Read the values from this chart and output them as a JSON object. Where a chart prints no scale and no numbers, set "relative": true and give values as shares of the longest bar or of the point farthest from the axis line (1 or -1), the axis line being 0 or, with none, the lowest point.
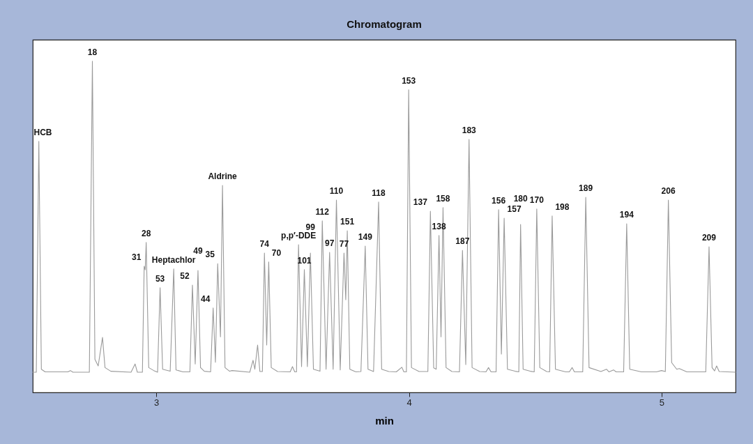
{
  "chart_data": {
    "type": "line",
    "relative": true,
    "title": "Chromatogram",
    "xlabel": "min",
    "xlim": [
      2.511,
      5.293
    ],
    "xticks": [
      3,
      4,
      5
    ],
    "grid": false,
    "marker": "none",
    "line_style": "solid",
    "series": [
      {
        "color": "#9a9a9a",
        "x": [
          2.511,
          2.525,
          2.535,
          2.545,
          2.56,
          2.65,
          2.66,
          2.67,
          2.735,
          2.747,
          2.757,
          2.77,
          2.787,
          2.797,
          2.82,
          2.9,
          2.916,
          2.925,
          2.945,
          2.952,
          2.956,
          2.96,
          2.97,
          2.99,
          3.005,
          3.015,
          3.025,
          3.055,
          3.069,
          3.078,
          3.105,
          3.133,
          3.143,
          3.154,
          3.165,
          3.175,
          3.19,
          3.215,
          3.225,
          3.234,
          3.243,
          3.254,
          3.262,
          3.272,
          3.29,
          3.3,
          3.37,
          3.383,
          3.39,
          3.401,
          3.41,
          3.42,
          3.428,
          3.437,
          3.445,
          3.455,
          3.48,
          3.53,
          3.539,
          3.548,
          3.555,
          3.563,
          3.575,
          3.586,
          3.598,
          3.61,
          3.622,
          3.648,
          3.657,
          3.672,
          3.686,
          3.7,
          3.713,
          3.728,
          3.743,
          3.75,
          3.756,
          3.766,
          3.79,
          3.81,
          3.827,
          3.838,
          3.86,
          3.88,
          3.892,
          3.92,
          3.95,
          3.972,
          3.98,
          3.99,
          3.999,
          4.01,
          4.04,
          4.075,
          4.085,
          4.098,
          4.108,
          4.119,
          4.127,
          4.135,
          4.147,
          4.17,
          4.2,
          4.212,
          4.225,
          4.238,
          4.25,
          4.28,
          4.305,
          4.315,
          4.325,
          4.345,
          4.355,
          4.366,
          4.377,
          4.39,
          4.42,
          4.435,
          4.442,
          4.452,
          4.48,
          4.496,
          4.506,
          4.518,
          4.545,
          4.557,
          4.567,
          4.58,
          4.62,
          4.635,
          4.646,
          4.655,
          4.688,
          4.7,
          4.713,
          4.76,
          4.782,
          4.792,
          4.81,
          4.82,
          4.85,
          4.862,
          4.874,
          4.92,
          4.98,
          5.0,
          5.015,
          5.027,
          5.04,
          5.06,
          5.07,
          5.1,
          5.175,
          5.188,
          5.2,
          5.21,
          5.218,
          5.228,
          5.293
        ],
        "values": [
          0.061,
          0.061,
          0.758,
          0.07,
          0.062,
          0.062,
          0.066,
          0.061,
          0.061,
          1.0,
          0.1,
          0.08,
          0.166,
          0.075,
          0.064,
          0.061,
          0.086,
          0.061,
          0.061,
          0.381,
          0.37,
          0.453,
          0.075,
          0.066,
          0.061,
          0.316,
          0.07,
          0.064,
          0.373,
          0.068,
          0.062,
          0.062,
          0.324,
          0.086,
          0.368,
          0.075,
          0.064,
          0.062,
          0.255,
          0.091,
          0.389,
          0.168,
          0.625,
          0.075,
          0.064,
          0.066,
          0.061,
          0.097,
          0.07,
          0.143,
          0.063,
          0.063,
          0.421,
          0.143,
          0.394,
          0.075,
          0.063,
          0.062,
          0.078,
          0.062,
          0.062,
          0.446,
          0.078,
          0.371,
          0.078,
          0.421,
          0.07,
          0.064,
          0.518,
          0.07,
          0.423,
          0.07,
          0.581,
          0.068,
          0.421,
          0.28,
          0.488,
          0.07,
          0.062,
          0.063,
          0.442,
          0.07,
          0.063,
          0.575,
          0.07,
          0.063,
          0.062,
          0.076,
          0.062,
          0.062,
          0.914,
          0.075,
          0.063,
          0.063,
          0.547,
          0.074,
          0.07,
          0.474,
          0.168,
          0.558,
          0.075,
          0.063,
          0.062,
          0.429,
          0.084,
          0.764,
          0.075,
          0.063,
          0.062,
          0.075,
          0.062,
          0.062,
          0.552,
          0.116,
          0.526,
          0.07,
          0.064,
          0.062,
          0.507,
          0.07,
          0.064,
          0.062,
          0.554,
          0.075,
          0.063,
          0.062,
          0.533,
          0.07,
          0.062,
          0.062,
          0.075,
          0.062,
          0.062,
          0.589,
          0.075,
          0.063,
          0.07,
          0.062,
          0.068,
          0.062,
          0.062,
          0.509,
          0.07,
          0.062,
          0.062,
          0.066,
          0.063,
          0.581,
          0.09,
          0.07,
          0.072,
          0.062,
          0.062,
          0.44,
          0.075,
          0.065,
          0.08,
          0.063,
          0.061
        ]
      }
    ],
    "annotations": [
      {
        "text": "HCB",
        "x": 2.535,
        "y": 0.758
      },
      {
        "text": "18",
        "x": 2.747,
        "y": 1.0
      },
      {
        "text": "31",
        "x": 2.952,
        "y": 0.381
      },
      {
        "text": "28",
        "x": 2.96,
        "y": 0.453
      },
      {
        "text": "53",
        "x": 3.015,
        "y": 0.316
      },
      {
        "text": "Heptachlor",
        "x": 3.069,
        "y": 0.373
      },
      {
        "text": "52",
        "x": 3.143,
        "y": 0.324
      },
      {
        "text": "49",
        "x": 3.165,
        "y": 0.368
      },
      {
        "text": "44",
        "x": 3.225,
        "y": 0.255
      },
      {
        "text": "35",
        "x": 3.243,
        "y": 0.389
      },
      {
        "text": "Aldrine",
        "x": 3.262,
        "y": 0.625
      },
      {
        "text": "74",
        "x": 3.428,
        "y": 0.421
      },
      {
        "text": "70",
        "x": 3.445,
        "y": 0.394
      },
      {
        "text": "p,p′-DDE",
        "x": 3.563,
        "y": 0.446
      },
      {
        "text": "101",
        "x": 3.586,
        "y": 0.371
      },
      {
        "text": "99",
        "x": 3.61,
        "y": 0.421
      },
      {
        "text": "112",
        "x": 3.657,
        "y": 0.518
      },
      {
        "text": "97",
        "x": 3.686,
        "y": 0.423
      },
      {
        "text": "110",
        "x": 3.713,
        "y": 0.581
      },
      {
        "text": "77",
        "x": 3.743,
        "y": 0.421
      },
      {
        "text": "151",
        "x": 3.756,
        "y": 0.488
      },
      {
        "text": "149",
        "x": 3.827,
        "y": 0.442
      },
      {
        "text": "118",
        "x": 3.88,
        "y": 0.575
      },
      {
        "text": "153",
        "x": 3.999,
        "y": 0.914
      },
      {
        "text": "137",
        "x": 4.085,
        "y": 0.547
      },
      {
        "text": "138",
        "x": 4.119,
        "y": 0.474
      },
      {
        "text": "158",
        "x": 4.135,
        "y": 0.558
      },
      {
        "text": "187",
        "x": 4.212,
        "y": 0.429
      },
      {
        "text": "183",
        "x": 4.238,
        "y": 0.764
      },
      {
        "text": "156",
        "x": 4.355,
        "y": 0.552
      },
      {
        "text": "157",
        "x": 4.377,
        "y": 0.526
      },
      {
        "text": "180",
        "x": 4.442,
        "y": 0.507
      },
      {
        "text": "170",
        "x": 4.506,
        "y": 0.554
      },
      {
        "text": "198",
        "x": 4.567,
        "y": 0.533
      },
      {
        "text": "189",
        "x": 4.7,
        "y": 0.589
      },
      {
        "text": "194",
        "x": 4.862,
        "y": 0.509
      },
      {
        "text": "206",
        "x": 5.027,
        "y": 0.581
      },
      {
        "text": "209",
        "x": 5.188,
        "y": 0.44
      }
    ]
  }
}
